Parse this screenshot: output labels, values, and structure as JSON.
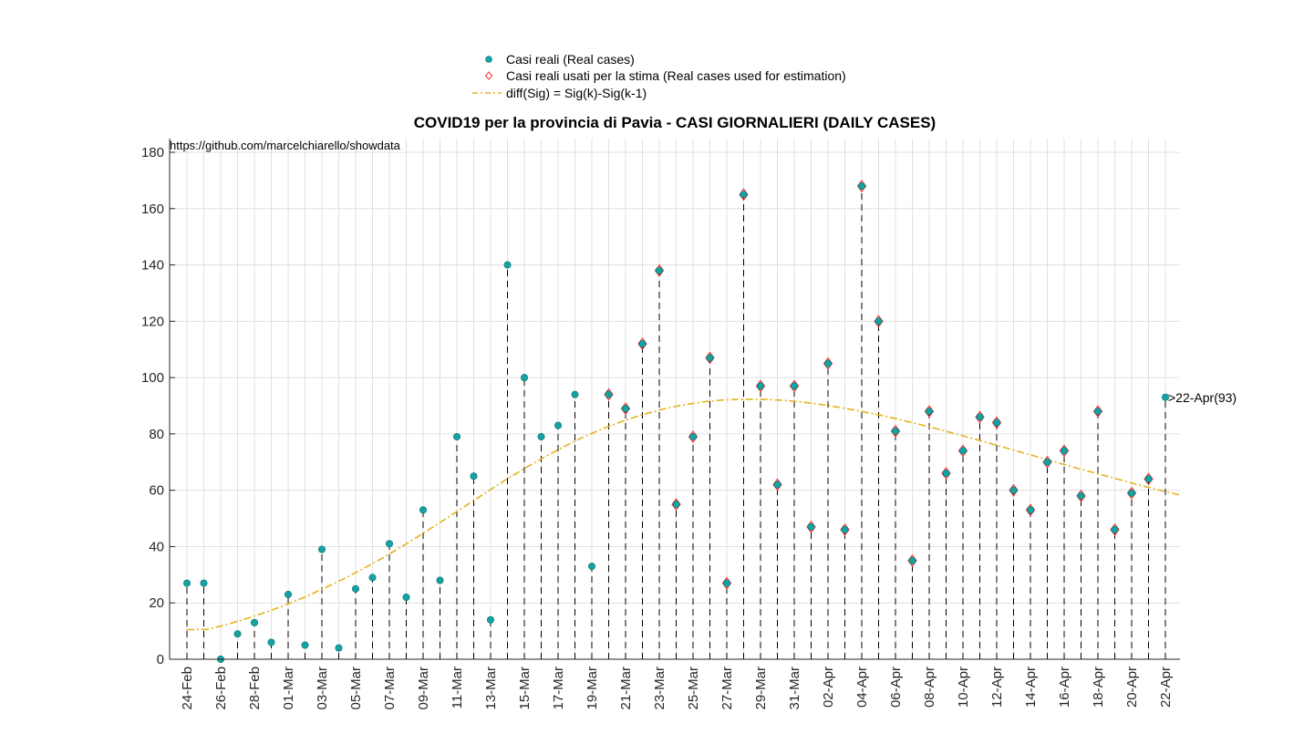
{
  "chart_data": {
    "type": "scatter",
    "title": "COVID19 per la provincia di Pavia - CASI GIORNALIERI (DAILY CASES)",
    "annotation": "https://github.com/marcelchiarello/showdata",
    "xlabel": "",
    "ylabel": "",
    "ylim": [
      0,
      180
    ],
    "yticks": [
      0,
      20,
      40,
      60,
      80,
      100,
      120,
      140,
      160,
      180
    ],
    "grid": true,
    "legend_position": "top-center",
    "categories": [
      "24-Feb",
      "25-Feb",
      "26-Feb",
      "27-Feb",
      "28-Feb",
      "29-Feb",
      "01-Mar",
      "02-Mar",
      "03-Mar",
      "04-Mar",
      "05-Mar",
      "06-Mar",
      "07-Mar",
      "08-Mar",
      "09-Mar",
      "10-Mar",
      "11-Mar",
      "12-Mar",
      "13-Mar",
      "14-Mar",
      "15-Mar",
      "16-Mar",
      "17-Mar",
      "18-Mar",
      "19-Mar",
      "20-Mar",
      "21-Mar",
      "22-Mar",
      "23-Mar",
      "24-Mar",
      "25-Mar",
      "26-Mar",
      "27-Mar",
      "28-Mar",
      "29-Mar",
      "30-Mar",
      "31-Mar",
      "01-Apr",
      "02-Apr",
      "03-Apr",
      "04-Apr",
      "05-Apr",
      "06-Apr",
      "07-Apr",
      "08-Apr",
      "09-Apr",
      "10-Apr",
      "11-Apr",
      "12-Apr",
      "13-Apr",
      "14-Apr",
      "15-Apr",
      "16-Apr",
      "17-Apr",
      "18-Apr",
      "19-Apr",
      "20-Apr",
      "21-Apr",
      "22-Apr"
    ],
    "xtick_labels": [
      "24-Feb",
      "26-Feb",
      "28-Feb",
      "01-Mar",
      "03-Mar",
      "05-Mar",
      "07-Mar",
      "09-Mar",
      "11-Mar",
      "13-Mar",
      "15-Mar",
      "17-Mar",
      "19-Mar",
      "21-Mar",
      "23-Mar",
      "25-Mar",
      "27-Mar",
      "29-Mar",
      "31-Mar",
      "02-Apr",
      "04-Apr",
      "06-Apr",
      "08-Apr",
      "10-Apr",
      "12-Apr",
      "14-Apr",
      "16-Apr",
      "18-Apr",
      "20-Apr",
      "22-Apr"
    ],
    "series": [
      {
        "name": "Casi reali (Real cases)",
        "marker": "filled-circle",
        "color": "#14a3a3",
        "values": [
          27,
          27,
          0,
          9,
          13,
          6,
          23,
          5,
          39,
          4,
          25,
          29,
          41,
          22,
          53,
          28,
          79,
          65,
          14,
          140,
          100,
          79,
          83,
          94,
          33,
          94,
          89,
          112,
          138,
          55,
          79,
          107,
          27,
          165,
          97,
          62,
          97,
          47,
          105,
          46,
          168,
          120,
          81,
          35,
          88,
          66,
          74,
          86,
          84,
          60,
          53,
          70,
          74,
          58,
          88,
          46,
          59,
          64,
          93
        ]
      },
      {
        "name": "Casi reali usati per la stima (Real cases used for estimation)",
        "marker": "diamond",
        "color": "#ff2a2a",
        "start_category": "20-Mar",
        "end_category": "21-Apr"
      },
      {
        "name": "diff(Sig) = Sig(k)-Sig(k-1)",
        "marker": "dash-dot-line",
        "color": "#e6b21e",
        "x_end": 61,
        "values": [
          10.5,
          10.6,
          12.3,
          14.4,
          16.7,
          19.3,
          22.2,
          25.4,
          28.8,
          32.5,
          36.4,
          40.6,
          45.0,
          49.5,
          54.1,
          58.7,
          63.2,
          67.5,
          71.5,
          75.3,
          78.8,
          81.8,
          84.5,
          86.8,
          88.7,
          90.2,
          91.3,
          92.0,
          92.3,
          92.3,
          92.0,
          91.4,
          90.5,
          89.4,
          88.1,
          86.7,
          85.1,
          83.4,
          81.6,
          79.7,
          77.8,
          75.8,
          73.8,
          71.8,
          69.8,
          67.8,
          65.9,
          64.0,
          62.1,
          60.3,
          58.6,
          56.9,
          55.0
        ]
      }
    ],
    "end_label": ">22-Apr(93)"
  },
  "colors": {
    "real_cases": "#14a3a3",
    "estimation_marker": "#ff2a2a",
    "fit_line": "#e6b21e",
    "stems": "#000000",
    "grid": "#e0e0e0"
  }
}
